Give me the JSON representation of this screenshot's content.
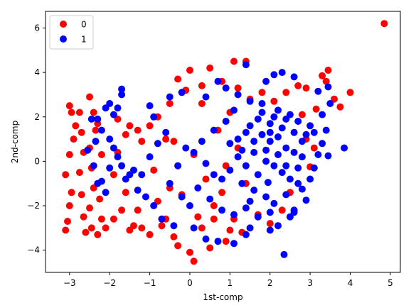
{
  "chart_data": {
    "type": "scatter",
    "title": "",
    "xlabel": "1st-comp",
    "ylabel": "2nd-comp",
    "xlim": [
      -3.6,
      5.25
    ],
    "ylim": [
      -5.0,
      6.75
    ],
    "xticks": [
      -3,
      -2,
      -1,
      0,
      1,
      2,
      3,
      4,
      5
    ],
    "yticks": [
      -4,
      -2,
      0,
      2,
      4,
      6
    ],
    "grid": false,
    "legend": "upper left",
    "series": [
      {
        "name": "0",
        "color": "#ff0000",
        "points": [
          [
            4.85,
            6.2
          ],
          [
            1.4,
            4.5
          ],
          [
            1.1,
            4.5
          ],
          [
            3.45,
            4.1
          ],
          [
            3.3,
            3.85
          ],
          [
            3.4,
            3.6
          ],
          [
            4.0,
            3.1
          ],
          [
            3.6,
            2.8
          ],
          [
            3.75,
            2.45
          ],
          [
            2.9,
            1.0
          ],
          [
            3.0,
            -0.25
          ],
          [
            3.1,
            0.6
          ],
          [
            0.0,
            4.1
          ],
          [
            0.5,
            4.2
          ],
          [
            -0.3,
            3.7
          ],
          [
            -0.1,
            3.2
          ],
          [
            0.3,
            3.4
          ],
          [
            0.8,
            3.6
          ],
          [
            1.2,
            3.3
          ],
          [
            -0.5,
            2.6
          ],
          [
            -0.8,
            2.0
          ],
          [
            -1.0,
            1.6
          ],
          [
            -1.3,
            1.4
          ],
          [
            -1.6,
            1.2
          ],
          [
            -1.8,
            0.4
          ],
          [
            -1.9,
            -0.6
          ],
          [
            -1.6,
            -1.4
          ],
          [
            -1.3,
            -2.2
          ],
          [
            -1.2,
            -3.0
          ],
          [
            -1.0,
            -3.3
          ],
          [
            -0.7,
            -2.9
          ],
          [
            -0.4,
            -3.4
          ],
          [
            -0.3,
            -3.8
          ],
          [
            0.0,
            -4.1
          ],
          [
            0.1,
            -4.5
          ],
          [
            0.5,
            -3.9
          ],
          [
            0.9,
            -3.6
          ],
          [
            1.3,
            -3.2
          ],
          [
            0.2,
            -2.5
          ],
          [
            0.6,
            -2.0
          ],
          [
            -0.2,
            -1.5
          ],
          [
            0.4,
            -0.8
          ],
          [
            0.1,
            0.3
          ],
          [
            -0.4,
            0.9
          ],
          [
            0.7,
            1.4
          ],
          [
            1.0,
            2.2
          ],
          [
            0.3,
            2.6
          ],
          [
            -0.6,
            1.0
          ],
          [
            -0.9,
            -0.4
          ],
          [
            -0.5,
            -1.2
          ],
          [
            1.4,
            -1.0
          ],
          [
            1.7,
            -2.4
          ],
          [
            2.0,
            -2.8
          ],
          [
            2.3,
            -2.2
          ],
          [
            2.5,
            -1.4
          ],
          [
            1.2,
            0.6
          ],
          [
            0.9,
            -0.2
          ],
          [
            1.5,
            2.8
          ],
          [
            1.8,
            3.1
          ],
          [
            2.1,
            2.7
          ],
          [
            2.4,
            3.1
          ],
          [
            2.7,
            3.4
          ],
          [
            2.9,
            3.3
          ],
          [
            3.15,
            2.35
          ],
          [
            2.8,
            2.1
          ],
          [
            -3.1,
            -3.1
          ],
          [
            -3.05,
            -2.7
          ],
          [
            -3.0,
            -2.0
          ],
          [
            -2.95,
            -1.4
          ],
          [
            -3.1,
            -0.6
          ],
          [
            -3.0,
            0.3
          ],
          [
            -2.9,
            1.0
          ],
          [
            -2.85,
            1.6
          ],
          [
            -2.95,
            2.2
          ],
          [
            -3.0,
            2.5
          ],
          [
            -2.75,
            2.2
          ],
          [
            -2.7,
            1.3
          ],
          [
            -2.65,
            0.4
          ],
          [
            -2.75,
            -0.5
          ],
          [
            -2.7,
            -1.5
          ],
          [
            -2.65,
            -2.5
          ],
          [
            -2.6,
            -3.2
          ],
          [
            -2.5,
            2.9
          ],
          [
            -2.4,
            2.2
          ],
          [
            -2.35,
            1.4
          ],
          [
            -2.5,
            0.6
          ],
          [
            -2.45,
            -0.3
          ],
          [
            -2.4,
            -1.2
          ],
          [
            -2.5,
            -2.1
          ],
          [
            -2.45,
            -3.0
          ],
          [
            -2.3,
            -3.3
          ],
          [
            -2.2,
            -2.6
          ],
          [
            -2.25,
            -1.7
          ],
          [
            -2.2,
            0.3
          ],
          [
            -2.3,
            1.7
          ],
          [
            -2.1,
            -3.0
          ],
          [
            -1.9,
            -2.6
          ],
          [
            -1.7,
            -2.2
          ],
          [
            -1.5,
            -3.1
          ],
          [
            -1.4,
            -2.9
          ],
          [
            -1.8,
            1.9
          ],
          [
            -1.5,
            1.6
          ],
          [
            -1.2,
            0.9
          ],
          [
            -0.8,
            -1.8
          ],
          [
            -0.6,
            -2.6
          ],
          [
            0.3,
            -3.0
          ],
          [
            0.6,
            -2.6
          ],
          [
            0.8,
            -1.4
          ],
          [
            1.1,
            -2.6
          ],
          [
            1.0,
            -3.1
          ]
        ]
      },
      {
        "name": "1",
        "color": "#0000ff",
        "points": [
          [
            2.35,
            -4.2
          ],
          [
            1.4,
            4.35
          ],
          [
            1.9,
            3.6
          ],
          [
            2.1,
            3.9
          ],
          [
            2.3,
            4.0
          ],
          [
            2.6,
            3.8
          ],
          [
            3.2,
            3.15
          ],
          [
            3.45,
            3.35
          ],
          [
            3.5,
            2.6
          ],
          [
            3.3,
            2.1
          ],
          [
            3.4,
            1.4
          ],
          [
            3.3,
            0.8
          ],
          [
            3.85,
            0.6
          ],
          [
            3.45,
            0.25
          ],
          [
            3.1,
            -0.3
          ],
          [
            3.0,
            -0.8
          ],
          [
            2.8,
            -1.25
          ],
          [
            2.9,
            -1.75
          ],
          [
            2.6,
            -2.2
          ],
          [
            2.5,
            -2.5
          ],
          [
            2.6,
            -2.3
          ],
          [
            2.2,
            -2.9
          ],
          [
            2.0,
            -3.1
          ],
          [
            1.5,
            -3.0
          ],
          [
            1.4,
            -3.3
          ],
          [
            1.1,
            -3.7
          ],
          [
            0.7,
            -3.6
          ],
          [
            0.4,
            -3.5
          ],
          [
            0.1,
            -3.0
          ],
          [
            -0.4,
            -2.9
          ],
          [
            -0.7,
            -2.6
          ],
          [
            -0.9,
            -2.0
          ],
          [
            -1.1,
            -1.6
          ],
          [
            -1.3,
            -1.3
          ],
          [
            -1.5,
            -0.6
          ],
          [
            -1.7,
            -0.2
          ],
          [
            -1.8,
            0.2
          ],
          [
            -1.9,
            0.6
          ],
          [
            -2.0,
            1.0
          ],
          [
            -2.2,
            1.4
          ],
          [
            -2.3,
            1.9
          ],
          [
            -2.1,
            2.4
          ],
          [
            -2.0,
            2.6
          ],
          [
            -1.7,
            3.25
          ],
          [
            -1.7,
            3.0
          ],
          [
            -1.8,
            2.4
          ],
          [
            -1.9,
            2.1
          ],
          [
            -2.45,
            1.9
          ],
          [
            -2.35,
            0.9
          ],
          [
            -2.55,
            0.5
          ],
          [
            -2.4,
            -0.2
          ],
          [
            -2.2,
            -0.9
          ],
          [
            -2.1,
            -1.4
          ],
          [
            -2.3,
            -1.0
          ],
          [
            -2.0,
            -0.3
          ],
          [
            -1.6,
            -0.8
          ],
          [
            -1.4,
            -0.4
          ],
          [
            -1.2,
            -0.6
          ],
          [
            -1.0,
            0.2
          ],
          [
            -0.8,
            0.8
          ],
          [
            -0.6,
            1.3
          ],
          [
            -0.9,
            2.0
          ],
          [
            -1.0,
            2.5
          ],
          [
            -0.5,
            2.9
          ],
          [
            -0.2,
            3.1
          ],
          [
            0.4,
            2.9
          ],
          [
            0.7,
            3.6
          ],
          [
            0.9,
            3.3
          ],
          [
            1.2,
            3.0
          ],
          [
            1.5,
            2.7
          ],
          [
            1.8,
            2.6
          ],
          [
            2.2,
            2.3
          ],
          [
            2.5,
            2.1
          ],
          [
            2.7,
            1.8
          ],
          [
            3.0,
            1.6
          ],
          [
            1.5,
            1.6
          ],
          [
            1.8,
            1.2
          ],
          [
            2.0,
            0.9
          ],
          [
            2.2,
            1.1
          ],
          [
            2.4,
            0.6
          ],
          [
            2.6,
            0.4
          ],
          [
            2.8,
            0.2
          ],
          [
            1.6,
            0.4
          ],
          [
            1.9,
            0.0
          ],
          [
            2.1,
            -0.2
          ],
          [
            2.3,
            -0.5
          ],
          [
            2.5,
            -0.8
          ],
          [
            1.7,
            -0.6
          ],
          [
            1.4,
            -0.2
          ],
          [
            1.2,
            0.2
          ],
          [
            1.0,
            -0.4
          ],
          [
            0.8,
            -0.8
          ],
          [
            1.3,
            -1.0
          ],
          [
            1.6,
            -1.3
          ],
          [
            1.9,
            -1.6
          ],
          [
            2.1,
            -1.9
          ],
          [
            2.4,
            -1.5
          ],
          [
            2.7,
            -1.0
          ],
          [
            1.2,
            1.0
          ],
          [
            1.4,
            1.3
          ],
          [
            1.7,
            1.9
          ],
          [
            2.0,
            1.7
          ],
          [
            2.3,
            1.5
          ],
          [
            2.6,
            1.3
          ],
          [
            2.9,
            1.2
          ],
          [
            1.1,
            2.3
          ],
          [
            0.9,
            1.8
          ],
          [
            0.6,
            1.4
          ],
          [
            0.3,
            0.9
          ],
          [
            0.1,
            0.4
          ],
          [
            0.4,
            -0.1
          ],
          [
            0.6,
            -0.6
          ],
          [
            0.2,
            -1.2
          ],
          [
            0.5,
            -1.7
          ],
          [
            0.8,
            -2.2
          ],
          [
            1.1,
            -2.4
          ],
          [
            1.4,
            -2.1
          ],
          [
            1.7,
            -2.5
          ],
          [
            2.0,
            -2.3
          ],
          [
            0.0,
            -2.0
          ],
          [
            -0.2,
            -1.6
          ],
          [
            -0.5,
            -1.0
          ],
          [
            -0.3,
            -0.2
          ],
          [
            -0.1,
            0.6
          ],
          [
            1.5,
            -1.8
          ],
          [
            1.8,
            2.2
          ],
          [
            2.2,
            0.3
          ],
          [
            2.4,
            -0.2
          ],
          [
            1.9,
            0.5
          ],
          [
            1.6,
            0.9
          ],
          [
            2.0,
            1.3
          ],
          [
            2.4,
            1.9
          ],
          [
            2.1,
            2.0
          ],
          [
            1.3,
            0.5
          ],
          [
            1.0,
            0.8
          ],
          [
            2.8,
            0.9
          ],
          [
            3.1,
            1.3
          ],
          [
            3.2,
            0.3
          ],
          [
            2.7,
            -0.3
          ],
          [
            1.95,
            -0.95
          ]
        ]
      }
    ]
  }
}
